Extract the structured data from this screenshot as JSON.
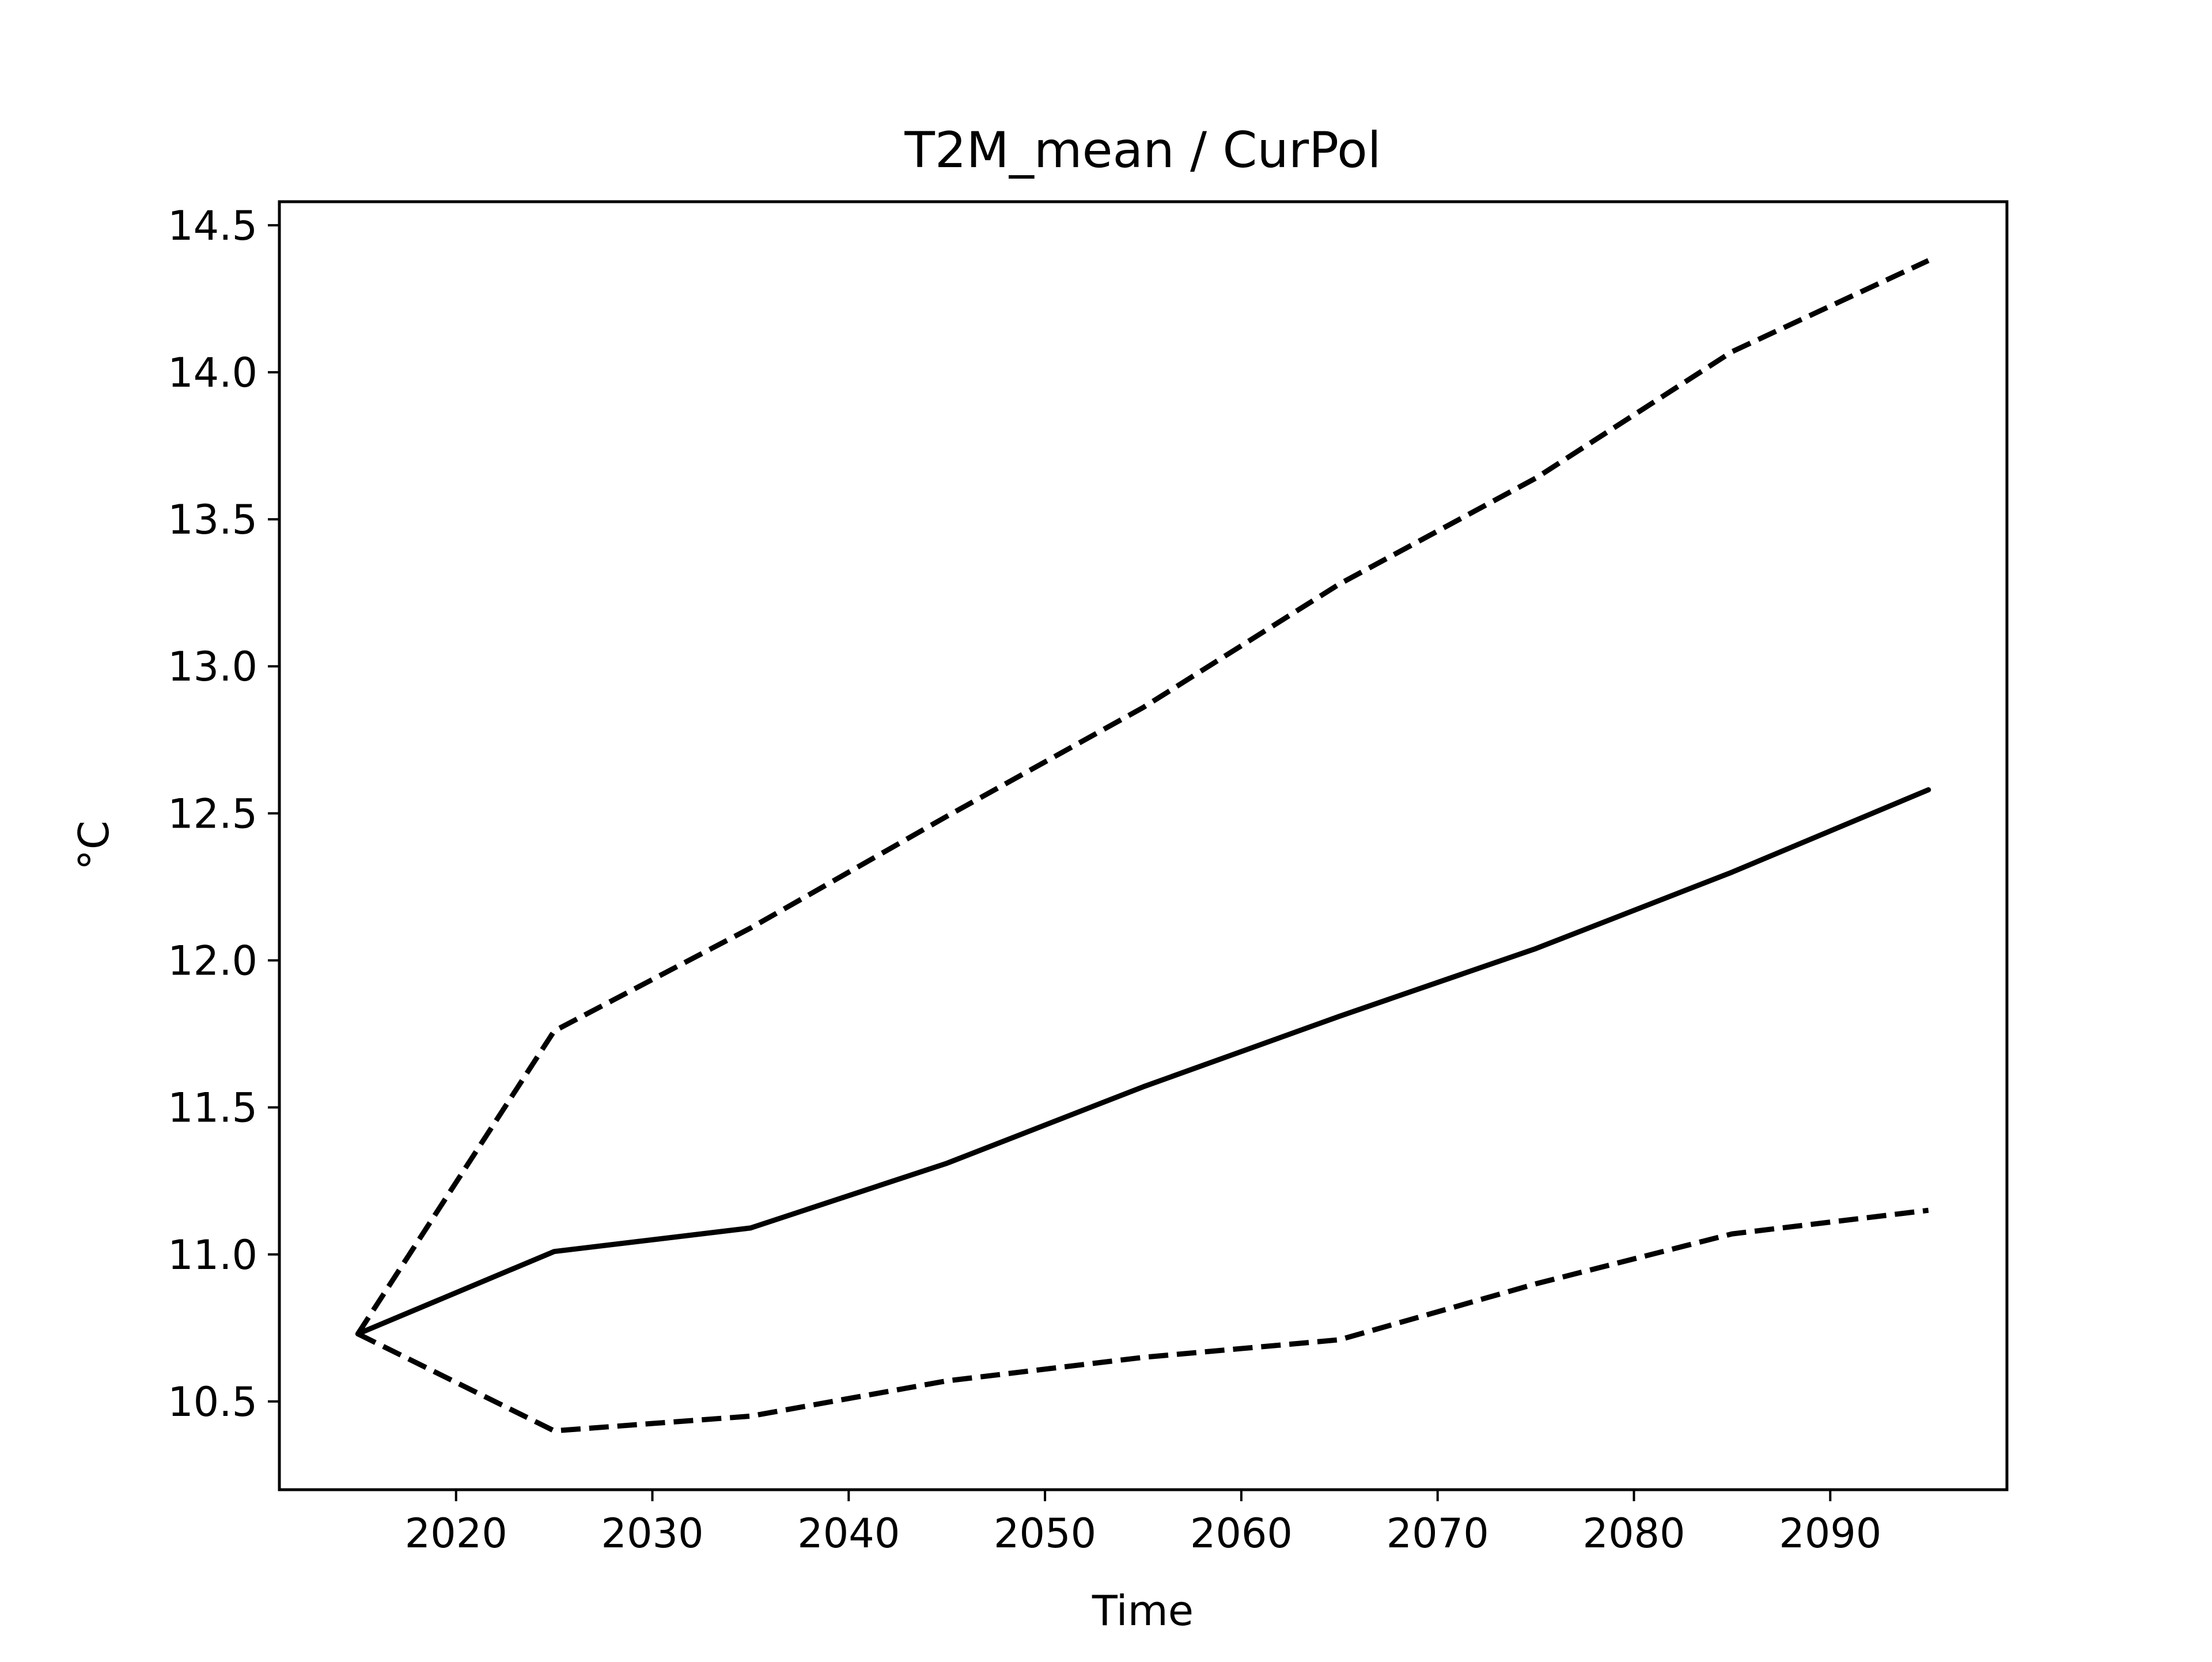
{
  "chart_data": {
    "type": "line",
    "title": "T2M_mean / CurPol",
    "xlabel": "Time",
    "ylabel": "°C",
    "xlim": [
      2011,
      2099
    ],
    "ylim": [
      10.2,
      14.58
    ],
    "x_ticks": [
      2020,
      2030,
      2040,
      2050,
      2060,
      2070,
      2080,
      2090
    ],
    "y_ticks": [
      10.5,
      11.0,
      11.5,
      12.0,
      12.5,
      13.0,
      13.5,
      14.0,
      14.5
    ],
    "y_tick_labels": [
      "10.5",
      "11.0",
      "11.5",
      "12.0",
      "12.5",
      "13.0",
      "13.5",
      "14.0",
      "14.5"
    ],
    "x_tick_labels": [
      "2020",
      "2030",
      "2040",
      "2050",
      "2060",
      "2070",
      "2080",
      "2090"
    ],
    "grid": false,
    "legend": "none",
    "x": [
      2015,
      2025,
      2035,
      2045,
      2055,
      2065,
      2075,
      2085,
      2095
    ],
    "series": [
      {
        "style": "dashed",
        "color": "#000000",
        "values": [
          10.73,
          11.76,
          12.11,
          12.49,
          12.86,
          13.28,
          13.64,
          14.07,
          14.38
        ]
      },
      {
        "style": "solid",
        "color": "#000000",
        "values": [
          10.73,
          11.01,
          11.09,
          11.31,
          11.57,
          11.81,
          12.04,
          12.3,
          12.58
        ]
      },
      {
        "style": "dashed",
        "color": "#000000",
        "values": [
          10.73,
          10.4,
          10.45,
          10.57,
          10.65,
          10.71,
          10.9,
          11.07,
          11.15
        ]
      }
    ]
  }
}
